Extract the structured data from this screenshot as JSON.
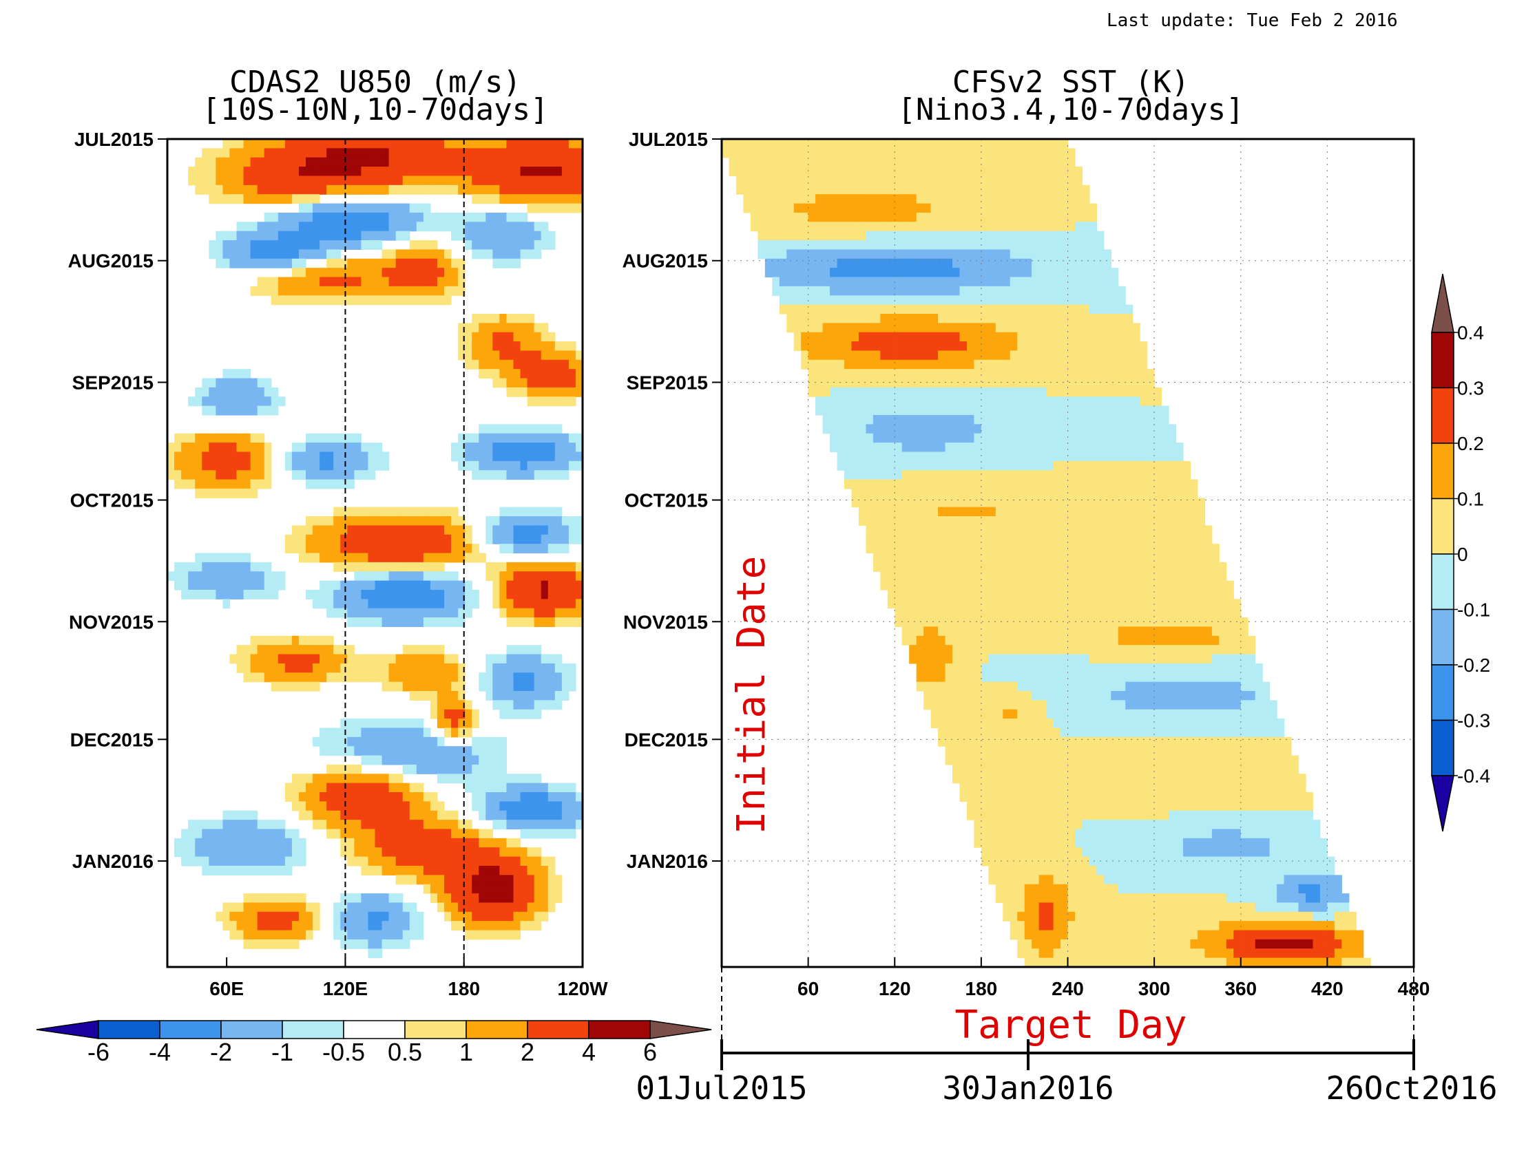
{
  "last_update": "Last update: Tue Feb 2 2016",
  "left_panel": {
    "title_line1": "CDAS2 U850 (m/s)",
    "title_line2": "[10S-10N,10-70days]"
  },
  "right_panel": {
    "title_line1": "CFSv2 SST (K)",
    "title_line2": "[Nino3.4,10-70days]",
    "ylabel": "Initial Date",
    "xlabel": "Target Day"
  },
  "timeline": {
    "start": "01Jul2015",
    "mid": "30Jan2016",
    "end": "26Oct2016"
  },
  "colors": {
    "levels": [
      "#1a00a0",
      "#0a5fd0",
      "#3c94ec",
      "#78b6f2",
      "#b4ecf6",
      "#ffffff",
      "#fce47c",
      "#fca60c",
      "#f2420e",
      "#a00606",
      "#7a5048"
    ]
  },
  "chart_data": [
    {
      "type": "heatmap",
      "title": "CDAS2 U850 (m/s)",
      "subtitle": "[10S-10N,10-70days]",
      "x_ticks": [
        "60E",
        "120E",
        "180",
        "120W"
      ],
      "x_tick_values": [
        60,
        120,
        180,
        240
      ],
      "xlim": [
        30,
        240
      ],
      "y_ticks": [
        "JUL2015",
        "AUG2015",
        "SEP2015",
        "OCT2015",
        "NOV2015",
        "DEC2015",
        "JAN2016"
      ],
      "y_tick_values": [
        0,
        31,
        62,
        92,
        123,
        153,
        184
      ],
      "ylim": [
        0,
        211
      ],
      "dashed_lines_at": [
        120,
        180
      ],
      "colorbar": {
        "labels": [
          "-6",
          "-4",
          "-2",
          "-1",
          "-0.5",
          "0.5",
          "1",
          "2",
          "4",
          "6"
        ],
        "levels": [
          -6,
          -4,
          -2,
          -1,
          -0.5,
          0.5,
          1,
          2,
          4,
          6
        ]
      },
      "features": [
        {
          "v": 3.0,
          "x": 95,
          "y": 10,
          "sx": 28,
          "sy": 6
        },
        {
          "v": 3.6,
          "x": 135,
          "y": 4,
          "sx": 30,
          "sy": 6
        },
        {
          "v": 4.2,
          "x": 220,
          "y": 8,
          "sx": 26,
          "sy": 6
        },
        {
          "v": -3.0,
          "x": 85,
          "y": 30,
          "sx": 20,
          "sy": 4
        },
        {
          "v": -3.2,
          "x": 120,
          "y": 20,
          "sx": 28,
          "sy": 5
        },
        {
          "v": 2.6,
          "x": 110,
          "y": 35,
          "sx": 30,
          "sy": 4
        },
        {
          "v": 2.4,
          "x": 160,
          "y": 33,
          "sx": 12,
          "sy": 5
        },
        {
          "v": -2.0,
          "x": 200,
          "y": 24,
          "sx": 16,
          "sy": 5
        },
        {
          "v": 2.2,
          "x": 200,
          "y": 52,
          "sx": 14,
          "sy": 5
        },
        {
          "v": 3.0,
          "x": 225,
          "y": 60,
          "sx": 14,
          "sy": 4
        },
        {
          "v": -2.0,
          "x": 65,
          "y": 66,
          "sx": 14,
          "sy": 4
        },
        {
          "v": 2.8,
          "x": 60,
          "y": 82,
          "sx": 18,
          "sy": 5
        },
        {
          "v": -2.2,
          "x": 110,
          "y": 82,
          "sx": 18,
          "sy": 4
        },
        {
          "v": -2.8,
          "x": 210,
          "y": 80,
          "sx": 20,
          "sy": 4
        },
        {
          "v": 3.6,
          "x": 148,
          "y": 103,
          "sx": 30,
          "sy": 5
        },
        {
          "v": -2.8,
          "x": 210,
          "y": 101,
          "sx": 18,
          "sy": 4
        },
        {
          "v": -3.0,
          "x": 150,
          "y": 116,
          "sx": 25,
          "sy": 5
        },
        {
          "v": 4.2,
          "x": 220,
          "y": 115,
          "sx": 16,
          "sy": 5
        },
        {
          "v": -1.8,
          "x": 60,
          "y": 112,
          "sx": 18,
          "sy": 4
        },
        {
          "v": 2.4,
          "x": 95,
          "y": 133,
          "sx": 18,
          "sy": 4
        },
        {
          "v": 2.0,
          "x": 160,
          "y": 136,
          "sx": 16,
          "sy": 4
        },
        {
          "v": 3.0,
          "x": 175,
          "y": 148,
          "sx": 8,
          "sy": 4
        },
        {
          "v": -2.2,
          "x": 210,
          "y": 138,
          "sx": 16,
          "sy": 5
        },
        {
          "v": -2.4,
          "x": 150,
          "y": 157,
          "sx": 30,
          "sy": 6
        },
        {
          "v": 3.6,
          "x": 130,
          "y": 167,
          "sx": 22,
          "sy": 6
        },
        {
          "v": 3.0,
          "x": 160,
          "y": 181,
          "sx": 22,
          "sy": 5
        },
        {
          "v": 5.0,
          "x": 195,
          "y": 191,
          "sx": 16,
          "sy": 6
        },
        {
          "v": -3.0,
          "x": 215,
          "y": 171,
          "sx": 18,
          "sy": 4
        },
        {
          "v": -2.0,
          "x": 70,
          "y": 180,
          "sx": 22,
          "sy": 5
        },
        {
          "v": 2.6,
          "x": 85,
          "y": 199,
          "sx": 16,
          "sy": 4
        },
        {
          "v": -2.2,
          "x": 135,
          "y": 199,
          "sx": 16,
          "sy": 5
        }
      ]
    },
    {
      "type": "heatmap",
      "title": "CFSv2 SST (K)",
      "subtitle": "[Nino3.4,10-70days]",
      "xlabel": "Target Day",
      "ylabel": "Initial Date",
      "x_ticks": [
        "60",
        "120",
        "180",
        "240",
        "300",
        "360",
        "420",
        "480"
      ],
      "x_tick_values": [
        60,
        120,
        180,
        240,
        300,
        360,
        420,
        480
      ],
      "xlim": [
        0,
        480
      ],
      "y_ticks": [
        "JUL2015",
        "AUG2015",
        "SEP2015",
        "OCT2015",
        "NOV2015",
        "DEC2015",
        "JAN2016"
      ],
      "y_tick_values": [
        0,
        31,
        62,
        92,
        123,
        153,
        184
      ],
      "ylim": [
        0,
        211
      ],
      "valid_region": "band from target day = initial date day to initial date day + 240",
      "colorbar": {
        "labels": [
          "0.4",
          "0.3",
          "0.2",
          "0.1",
          "0",
          "-0.1",
          "-0.2",
          "-0.3",
          "-0.4"
        ],
        "levels": [
          0.4,
          0.3,
          0.2,
          0.1,
          0,
          -0.1,
          -0.2,
          -0.3,
          -0.4
        ]
      },
      "features": [
        {
          "v": 0.14,
          "x": 100,
          "y": 18,
          "sx": 60,
          "sy": 5
        },
        {
          "v": -0.25,
          "x": 120,
          "y": 33,
          "sx": 70,
          "sy": 5
        },
        {
          "v": 0.26,
          "x": 130,
          "y": 52,
          "sx": 55,
          "sy": 5
        },
        {
          "v": -0.16,
          "x": 140,
          "y": 74,
          "sx": 40,
          "sy": 5
        },
        {
          "v": 0.11,
          "x": 170,
          "y": 95,
          "sx": 40,
          "sy": 5
        },
        {
          "v": 0.09,
          "x": 230,
          "y": 115,
          "sx": 60,
          "sy": 6
        },
        {
          "v": 0.15,
          "x": 310,
          "y": 127,
          "sx": 40,
          "sy": 3
        },
        {
          "v": 0.18,
          "x": 145,
          "y": 132,
          "sx": 12,
          "sy": 6
        },
        {
          "v": -0.14,
          "x": 320,
          "y": 142,
          "sx": 60,
          "sy": 5
        },
        {
          "v": 0.12,
          "x": 200,
          "y": 147,
          "sx": 16,
          "sy": 4
        },
        {
          "v": 0.08,
          "x": 330,
          "y": 163,
          "sx": 60,
          "sy": 5
        },
        {
          "v": -0.14,
          "x": 350,
          "y": 180,
          "sx": 40,
          "sy": 4
        },
        {
          "v": 0.22,
          "x": 225,
          "y": 198,
          "sx": 14,
          "sy": 8
        },
        {
          "v": 0.34,
          "x": 390,
          "y": 205,
          "sx": 40,
          "sy": 4
        },
        {
          "v": -0.22,
          "x": 410,
          "y": 192,
          "sx": 20,
          "sy": 4
        }
      ]
    }
  ]
}
